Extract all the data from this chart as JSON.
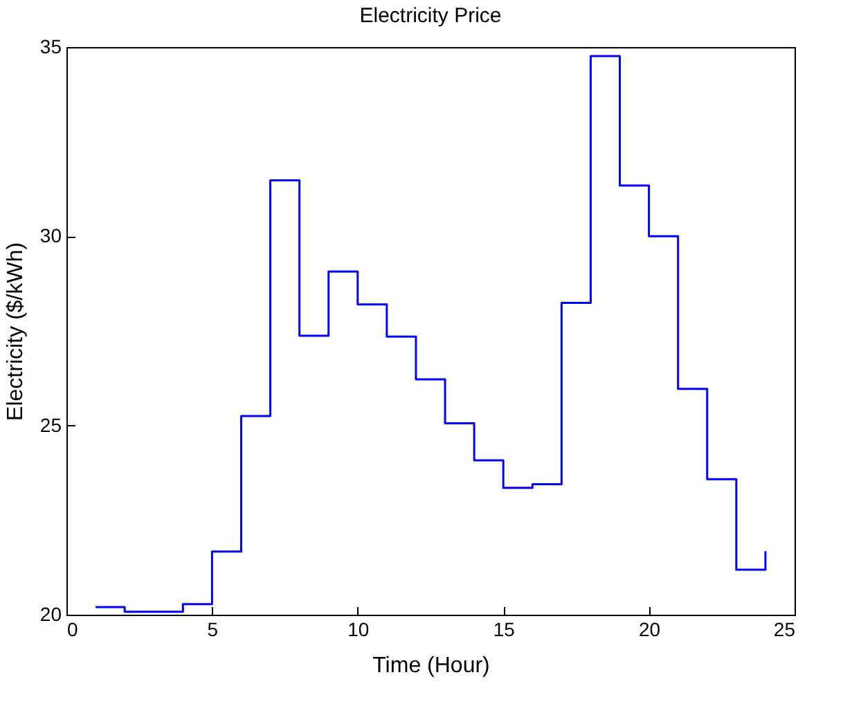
{
  "chart_data": {
    "type": "step",
    "title": "Electricity Price",
    "xlabel": "Time (Hour)",
    "ylabel": "Electricity ($/kWh)",
    "x": [
      1,
      2,
      3,
      4,
      5,
      6,
      7,
      8,
      9,
      10,
      11,
      12,
      13,
      14,
      15,
      16,
      17,
      18,
      19,
      20,
      21,
      22,
      23,
      24
    ],
    "series": [
      {
        "color": "#0000ff",
        "values": [
          20.2,
          20.08,
          20.08,
          20.28,
          21.67,
          25.25,
          31.48,
          27.37,
          29.07,
          28.2,
          27.35,
          26.22,
          25.06,
          24.08,
          23.35,
          23.45,
          28.24,
          34.76,
          31.34,
          30.0,
          25.97,
          23.58,
          21.19,
          21.68
        ]
      }
    ],
    "xlim": [
      0,
      25
    ],
    "xticks": [
      0,
      5,
      10,
      15,
      20,
      25
    ],
    "ylim": [
      20,
      35
    ],
    "yticks": [
      20,
      25,
      30,
      35
    ],
    "grid": false
  }
}
